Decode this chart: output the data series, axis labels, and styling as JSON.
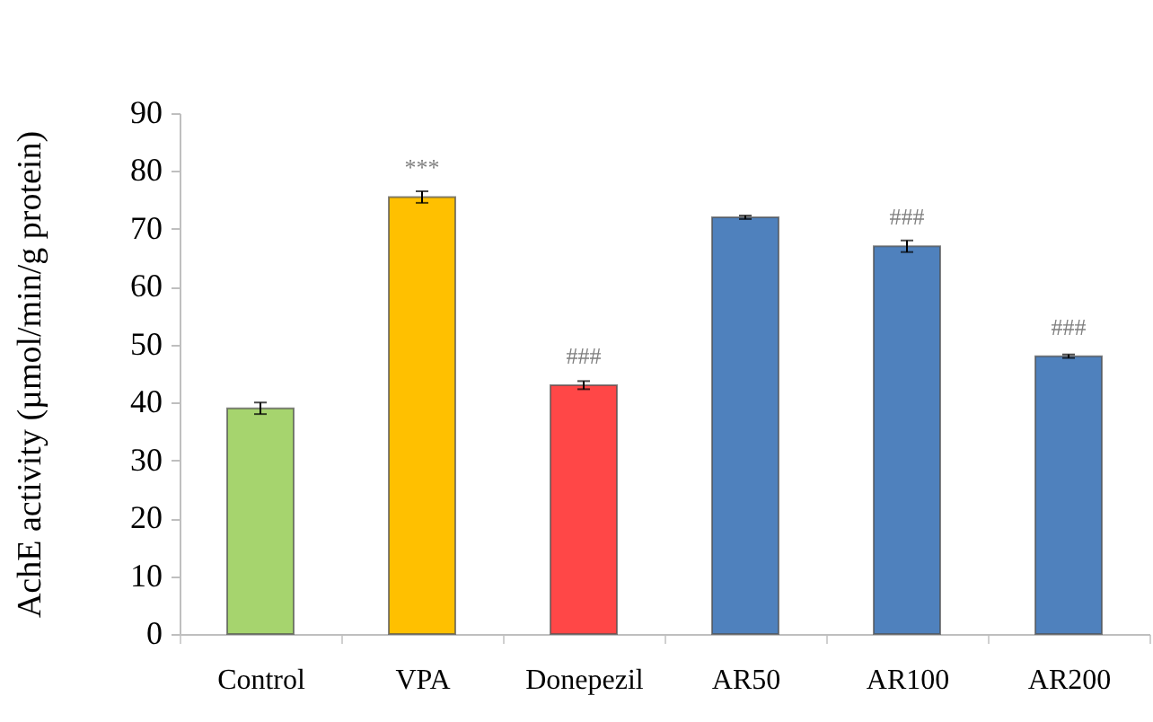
{
  "chart_data": {
    "type": "bar",
    "ylabel": "AchE activity (µmol/min/g protein)",
    "categories": [
      "Control",
      "VPA",
      "Donepezil",
      "AR50",
      "AR100",
      "AR200"
    ],
    "values": [
      39,
      75.5,
      43,
      72,
      67,
      48
    ],
    "errors": [
      1,
      1,
      0.7,
      0.3,
      1,
      0.3
    ],
    "colors": [
      "#a6d46e",
      "#ffc000",
      "#ff4747",
      "#4f81bd",
      "#4f81bd",
      "#4f81bd"
    ],
    "ylim": [
      0,
      90
    ],
    "yticks": [
      0,
      10,
      20,
      30,
      40,
      50,
      60,
      70,
      80,
      90
    ],
    "annotations": [
      {
        "text": "***",
        "x": "VPA",
        "y": 75.5
      },
      {
        "text": "###",
        "x": "Donepezil",
        "y": 43
      },
      {
        "text": "###",
        "x": "AR100",
        "y": 67
      },
      {
        "text": "###",
        "x": "AR200",
        "y": 48
      }
    ]
  }
}
